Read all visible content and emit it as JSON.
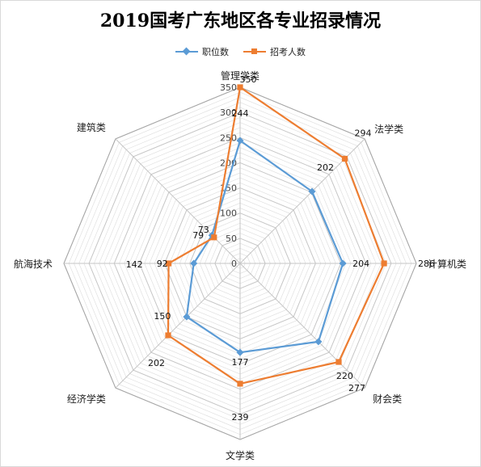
{
  "chart_data": {
    "type": "radar",
    "title": "2019国考广东地区各专业招录情况",
    "categories": [
      "管理学类",
      "法学类",
      "计算机类",
      "财会类",
      "文学类",
      "经济学类",
      "航海技术",
      "建筑类"
    ],
    "r_ticks": [
      "0",
      "50",
      "100",
      "150",
      "200",
      "250",
      "300",
      "350"
    ],
    "r_range": [
      0,
      350
    ],
    "grid": true,
    "legend_position": "top",
    "series": [
      {
        "name": "职位数",
        "color": "#5b9bd5",
        "values": [
          244,
          202,
          204,
          220,
          177,
          150,
          92,
          79
        ],
        "labels": [
          "244",
          "202",
          "204",
          "220",
          "177",
          "150",
          "92",
          "79"
        ]
      },
      {
        "name": "招考人数",
        "color": "#ed7d31",
        "values": [
          350,
          294,
          286,
          277,
          239,
          202,
          142,
          73
        ],
        "labels": [
          "350",
          "294",
          "286",
          "277",
          "239",
          "202",
          "142",
          "73"
        ]
      }
    ]
  }
}
